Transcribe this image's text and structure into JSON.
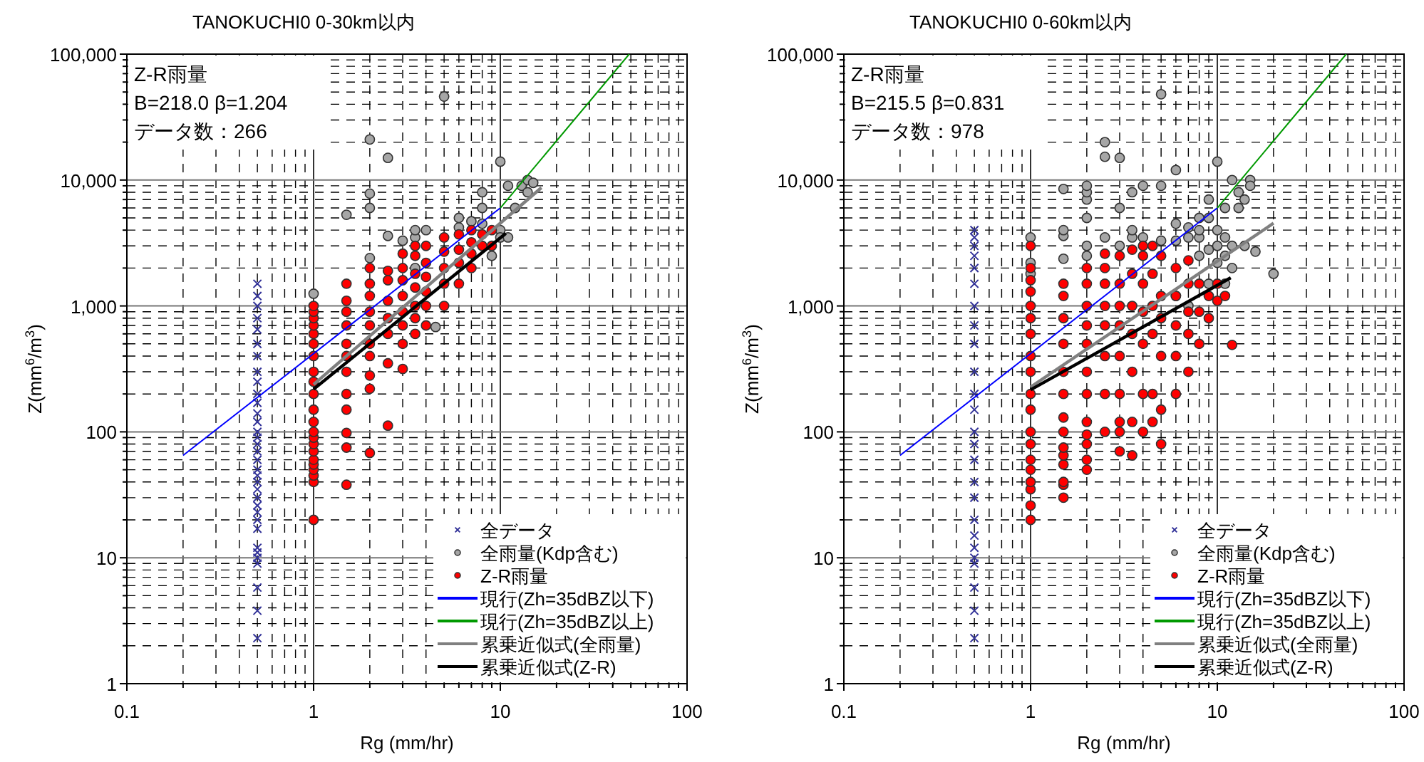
{
  "chart_data": [
    {
      "type": "scatter",
      "title": "TANOKUCHI0 0-30km以内",
      "annotations": [
        "Z-R雨量",
        "B=218.0  β=1.204",
        "データ数：266"
      ],
      "xlabel": "Rg (mm/hr)",
      "ylabel": "Z(mm$^{6}$/m$^{3}$)",
      "log": "xy",
      "grid": true,
      "legend": "bottom right",
      "xlim": [
        0.1,
        100
      ],
      "ylim": [
        1,
        100000
      ],
      "xticks": [
        0.1,
        1,
        10,
        100
      ],
      "yticks": [
        1,
        10,
        100,
        {
          "value": 1000,
          "label": "1,000"
        },
        {
          "value": 10000,
          "label": "10,000"
        },
        {
          "value": 100000,
          "label": "100,000"
        }
      ],
      "series": [
        {
          "name": "全データ",
          "type": "scatter",
          "marker": "cross",
          "color": "#333399",
          "x": [
            0.5,
            0.5,
            0.5,
            0.5,
            0.5,
            0.5,
            0.5,
            0.5,
            0.5,
            0.5,
            0.5,
            0.5,
            0.5,
            0.5,
            0.5,
            0.5,
            0.5,
            0.5,
            0.5,
            0.5,
            0.5,
            0.5,
            0.5,
            0.5,
            0.5,
            0.5,
            0.5,
            0.5,
            0.5,
            0.5,
            0.5,
            0.5,
            0.5,
            0.5
          ],
          "values": [
            2.3,
            3.8,
            5.8,
            9,
            10,
            11,
            12,
            17,
            20,
            23,
            26,
            30,
            35,
            40,
            45,
            50,
            60,
            70,
            80,
            90,
            100,
            120,
            140,
            170,
            200,
            250,
            300,
            400,
            500,
            650,
            800,
            1000,
            1200,
            1500
          ]
        },
        {
          "name": "全雨量(Kdp含む)",
          "type": "scatter",
          "marker": "circle",
          "color": "#a6a6a6",
          "x": [
            1,
            1.5,
            2,
            2,
            2,
            2,
            2.5,
            2.5,
            3,
            3.5,
            3.5,
            3.5,
            4,
            4.5,
            5,
            6,
            6,
            7,
            8,
            8,
            8,
            9,
            10,
            10,
            10,
            11,
            11,
            12,
            13,
            14,
            14,
            15
          ],
          "values": [
            1250,
            5300,
            2400,
            6000,
            7800,
            21000,
            3600,
            15000,
            3300,
            2000,
            3500,
            4000,
            4000,
            680,
            46000,
            4200,
            5000,
            4700,
            4500,
            6000,
            8000,
            2500,
            14000,
            4000,
            3500,
            9000,
            3500,
            6000,
            9000,
            10000,
            8000,
            9500
          ]
        },
        {
          "name": "Z-R雨量",
          "type": "scatter",
          "marker": "circle",
          "color": "#ff0000",
          "x": [
            1,
            1,
            1,
            1,
            1,
            1,
            1,
            1,
            1,
            1,
            1,
            1,
            1,
            1,
            1,
            1,
            1,
            1,
            1,
            1,
            1,
            1,
            1.5,
            1.5,
            1.5,
            1.5,
            1.5,
            1.5,
            1.5,
            1.5,
            1.5,
            1.5,
            1.5,
            1.5,
            2,
            2,
            2,
            2,
            2,
            2,
            2,
            2,
            2,
            2,
            2.5,
            2.5,
            2.5,
            2.5,
            2.5,
            2.5,
            2.5,
            3,
            3,
            3,
            3,
            3,
            3,
            3,
            3,
            3.5,
            3.5,
            3.5,
            3.5,
            3.5,
            3.5,
            3.5,
            4,
            4,
            4,
            4,
            4,
            4,
            5,
            5,
            5,
            5,
            5,
            6,
            6,
            6,
            6,
            7,
            7,
            7,
            7,
            8,
            8,
            9,
            9
          ],
          "values": [
            20,
            40,
            45,
            50,
            55,
            60,
            70,
            80,
            90,
            100,
            120,
            150,
            200,
            250,
            300,
            400,
            500,
            600,
            700,
            800,
            900,
            1000,
            38,
            75,
            98,
            150,
            200,
            300,
            400,
            500,
            700,
            900,
            1100,
            1500,
            68,
            220,
            280,
            400,
            500,
            700,
            900,
            1200,
            1500,
            2000,
            112,
            350,
            600,
            800,
            1100,
            1600,
            1900,
            316,
            500,
            700,
            900,
            1200,
            1600,
            2000,
            2600,
            600,
            800,
            1000,
            1400,
            1800,
            2500,
            3000,
            700,
            1000,
            1300,
            1700,
            2200,
            3000,
            1000,
            1500,
            2000,
            2700,
            3500,
            1500,
            2200,
            2800,
            3700,
            2000,
            2600,
            3200,
            4000,
            3000,
            3700,
            3000,
            4000
          ]
        },
        {
          "name": "現行(Zh=35dBZ以下)",
          "type": "line",
          "color": "#0000ff",
          "x": [
            0.2,
            10
          ],
          "values": [
            65,
            6000
          ]
        },
        {
          "name": "現行(Zh=35dBZ以上)",
          "type": "line",
          "color": "#009900",
          "x": [
            10,
            49
          ],
          "values": [
            6000,
            100000
          ]
        },
        {
          "name": "累乗近似式(全雨量)",
          "type": "line",
          "color": "#808080",
          "x": [
            1,
            16.6
          ],
          "values": [
            238,
            8700
          ]
        },
        {
          "name": "累乗近似式(Z-R)",
          "type": "line",
          "color": "#000000",
          "x": [
            1,
            10.7
          ],
          "values": [
            218,
            3770
          ]
        }
      ]
    },
    {
      "type": "scatter",
      "title": "TANOKUCHI0 0-60km以内",
      "annotations": [
        "Z-R雨量",
        "B=215.5  β=0.831",
        "データ数：978"
      ],
      "xlabel": "Rg (mm/hr)",
      "ylabel": "Z(mm$^{6}$/m$^{3}$)",
      "log": "xy",
      "grid": true,
      "legend": "bottom right",
      "xlim": [
        0.1,
        100
      ],
      "ylim": [
        1,
        100000
      ],
      "xticks": [
        0.1,
        1,
        10,
        100
      ],
      "yticks": [
        1,
        10,
        100,
        {
          "value": 1000,
          "label": "1,000"
        },
        {
          "value": 10000,
          "label": "10,000"
        },
        {
          "value": 100000,
          "label": "100,000"
        }
      ],
      "series": [
        {
          "name": "全データ",
          "type": "scatter",
          "marker": "cross",
          "color": "#333399",
          "x": [
            0.5,
            0.5,
            0.5,
            0.5,
            0.5,
            0.5,
            0.5,
            0.5,
            0.5,
            0.5,
            0.5,
            0.5,
            0.5,
            0.5,
            0.5,
            0.5,
            0.5,
            0.5,
            0.5,
            0.5,
            0.5,
            0.5,
            0.5,
            0.5,
            0.5
          ],
          "values": [
            2.3,
            3.8,
            5.8,
            9,
            10,
            12,
            15,
            20,
            30,
            40,
            60,
            80,
            100,
            150,
            200,
            300,
            500,
            700,
            1000,
            1500,
            2000,
            2500,
            3000,
            3500,
            4000
          ]
        },
        {
          "name": "全雨量(Kdp含む)",
          "type": "scatter",
          "marker": "circle",
          "color": "#a6a6a6",
          "x": [
            1,
            1,
            1,
            1.5,
            1.5,
            1.5,
            1.5,
            2,
            2,
            2,
            2,
            2,
            2,
            2.5,
            2.5,
            2.5,
            3,
            3,
            3,
            3.5,
            3.5,
            3.5,
            4,
            4,
            5,
            5,
            5,
            6,
            6,
            6,
            6,
            7,
            7,
            7,
            8,
            8,
            8,
            8,
            9,
            9,
            9,
            9,
            10,
            10,
            10,
            10,
            11,
            11,
            11,
            11,
            12,
            12,
            12,
            13,
            13,
            14,
            14,
            15,
            15,
            16,
            20
          ],
          "values": [
            3500,
            2200,
            1800,
            2370,
            3600,
            4000,
            8500,
            2500,
            3000,
            5000,
            7000,
            8000,
            9000,
            3500,
            15300,
            20000,
            6000,
            3000,
            15000,
            3500,
            4000,
            8000,
            9000,
            3500,
            48000,
            9000,
            3300,
            12000,
            3300,
            4500,
            1200,
            3500,
            4200,
            1000,
            5000,
            3500,
            4000,
            2500,
            7000,
            2800,
            5000,
            1500,
            14000,
            3000,
            4000,
            2200,
            6000,
            3500,
            2500,
            1500,
            2000,
            3000,
            10000,
            8000,
            6000,
            7000,
            3000,
            10000,
            9000,
            2700,
            1800
          ]
        },
        {
          "name": "Z-R雨量",
          "type": "scatter",
          "marker": "circle",
          "color": "#ff0000",
          "x": [
            1,
            1,
            1,
            1,
            1,
            1,
            1,
            1,
            1,
            1,
            1,
            1,
            1,
            1,
            1,
            1,
            1,
            1,
            1,
            1.5,
            1.5,
            1.5,
            1.5,
            1.5,
            1.5,
            1.5,
            1.5,
            1.5,
            1.5,
            1.5,
            1.5,
            1.5,
            1.5,
            2,
            2,
            2,
            2,
            2,
            2,
            2,
            2,
            2,
            2,
            2,
            2,
            2.5,
            2.5,
            2.5,
            2.5,
            2.5,
            2.5,
            2.5,
            2.5,
            3,
            3,
            3,
            3,
            3,
            3,
            3,
            3,
            3,
            3.5,
            3.5,
            3.5,
            3.5,
            3.5,
            3.5,
            3.5,
            4,
            4,
            4,
            4,
            4,
            4,
            4,
            4.5,
            4.5,
            4.5,
            4.5,
            4.5,
            4.5,
            5,
            5,
            5,
            5,
            5,
            5,
            6,
            6,
            6,
            6,
            6,
            7,
            7,
            7,
            7,
            7,
            8,
            8,
            8,
            9,
            9,
            10,
            10,
            11,
            12
          ],
          "values": [
            20,
            26,
            35,
            40,
            50,
            60,
            80,
            100,
            150,
            200,
            300,
            400,
            600,
            800,
            1000,
            1300,
            1600,
            2000,
            3000,
            30,
            38,
            40,
            55,
            65,
            75,
            100,
            130,
            200,
            300,
            500,
            800,
            1200,
            1500,
            50,
            60,
            80,
            95,
            120,
            200,
            300,
            500,
            700,
            1000,
            1500,
            2000,
            100,
            200,
            400,
            700,
            1000,
            1500,
            2000,
            2600,
            70,
            100,
            120,
            200,
            400,
            700,
            1000,
            1500,
            2500,
            65,
            120,
            300,
            600,
            1000,
            1800,
            2800,
            100,
            200,
            500,
            900,
            1500,
            2500,
            3000,
            120,
            200,
            600,
            1000,
            1800,
            3000,
            80,
            150,
            400,
            800,
            1200,
            2500,
            200,
            400,
            700,
            1200,
            2000,
            300,
            600,
            900,
            1500,
            2300,
            500,
            900,
            1500,
            800,
            1200,
            1100,
            1500,
            1200,
            490
          ]
        },
        {
          "name": "現行(Zh=35dBZ以下)",
          "type": "line",
          "color": "#0000ff",
          "x": [
            0.2,
            10
          ],
          "values": [
            65,
            6000
          ]
        },
        {
          "name": "現行(Zh=35dBZ以上)",
          "type": "line",
          "color": "#009900",
          "x": [
            10,
            49
          ],
          "values": [
            6000,
            100000
          ]
        },
        {
          "name": "累乗近似式(全雨量)",
          "type": "line",
          "color": "#808080",
          "x": [
            1,
            20
          ],
          "values": [
            227,
            4540
          ]
        },
        {
          "name": "累乗近似式(Z-R)",
          "type": "line",
          "color": "#000000",
          "x": [
            1,
            11.8
          ],
          "values": [
            215.5,
            1675
          ]
        }
      ]
    }
  ]
}
